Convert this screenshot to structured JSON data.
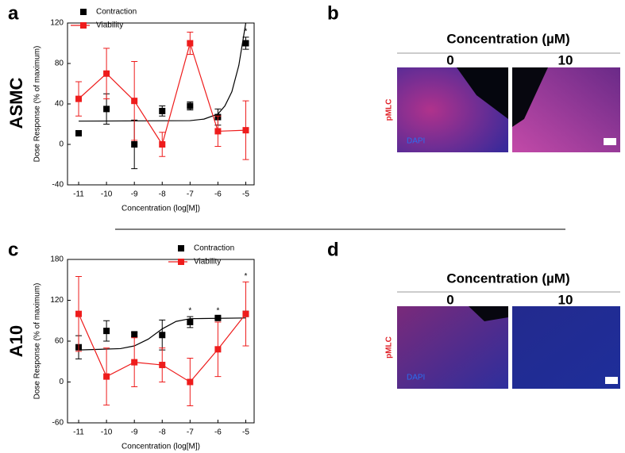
{
  "figure": {
    "panels": [
      "a",
      "b",
      "c",
      "d"
    ],
    "rows": [
      "ASMC",
      "A10"
    ]
  },
  "micrographs": [
    {
      "header": "Concentration (µM)",
      "columns": [
        "0",
        "10"
      ],
      "stain": "pMLC",
      "counterstain": "DAPI"
    },
    {
      "header": "Concentration (µM)",
      "columns": [
        "0",
        "10"
      ],
      "stain": "pMLC",
      "counterstain": "DAPI"
    }
  ],
  "chart_data": [
    {
      "type": "scatter",
      "xlabel": "Concentration (log[M])",
      "ylabel": "Dose Response (% of maximum)",
      "xlim": [
        -11.4,
        -4.7
      ],
      "xticks": [
        -11,
        -10,
        -9,
        -8,
        -7,
        -6,
        -5
      ],
      "ylim": [
        -40,
        120
      ],
      "yticks": [
        -40,
        0,
        40,
        80,
        120
      ],
      "legend": "upper left",
      "x": [
        -11,
        -10,
        -9,
        -8,
        -7,
        -6,
        -5
      ],
      "series": [
        {
          "name": "Contraction",
          "color": "#000000",
          "line": false,
          "values": [
            11,
            35,
            0,
            33,
            38,
            27,
            100
          ],
          "errors": [
            2,
            15,
            24,
            5,
            4,
            8,
            6
          ]
        },
        {
          "name": "Viability",
          "color": "#ee1c1c",
          "line": true,
          "values": [
            45,
            70,
            43,
            0,
            100,
            13,
            14
          ],
          "errors": [
            17,
            25,
            39,
            12,
            11,
            15,
            29
          ]
        }
      ],
      "fit": {
        "color": "#000000",
        "x": [
          -11,
          -7,
          -6.5,
          -6,
          -5.75,
          -5.5,
          -5.25,
          -5
        ],
        "values": [
          23,
          23.5,
          25,
          30,
          38,
          52,
          78,
          120
        ]
      },
      "annotations": [
        {
          "x": -5,
          "text": "*"
        }
      ]
    },
    {
      "type": "scatter",
      "xlabel": "Concentration (log[M])",
      "ylabel": "Dose Response (% of maximum)",
      "xlim": [
        -11.4,
        -4.7
      ],
      "xticks": [
        -11,
        -10,
        -9,
        -8,
        -7,
        -6,
        -5
      ],
      "ylim": [
        -60,
        180
      ],
      "yticks": [
        -60,
        0,
        60,
        120,
        180
      ],
      "legend": "upper right",
      "x": [
        -11,
        -10,
        -9,
        -8,
        -7,
        -6,
        -5
      ],
      "series": [
        {
          "name": "Contraction",
          "color": "#000000",
          "line": false,
          "values": [
            51,
            75,
            70,
            69,
            88,
            94,
            100
          ],
          "errors": [
            17,
            15,
            3,
            22,
            8,
            2,
            0
          ]
        },
        {
          "name": "Viability",
          "color": "#ee1c1c",
          "line": true,
          "values": [
            100,
            8,
            29,
            25,
            0,
            48,
            100
          ],
          "errors": [
            55,
            42,
            36,
            25,
            35,
            40,
            47
          ]
        }
      ],
      "fit": {
        "color": "#000000",
        "x": [
          -11,
          -9.5,
          -9,
          -8.5,
          -8,
          -7.5,
          -7,
          -5
        ],
        "values": [
          47,
          49,
          53,
          63,
          78,
          89,
          93,
          94
        ]
      },
      "annotations": [
        {
          "x": -7,
          "text": "*"
        },
        {
          "x": -6,
          "text": "*"
        },
        {
          "x": -5,
          "text": "*"
        }
      ]
    }
  ]
}
